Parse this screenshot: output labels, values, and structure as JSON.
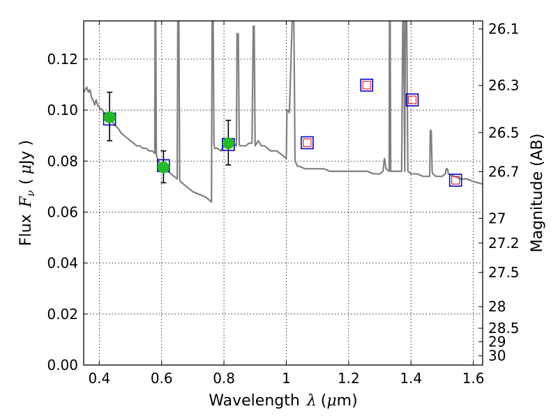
{
  "chart_data": {
    "type": "line",
    "xlabel_text": "Wavelength",
    "xlabel_symbol": "λ",
    "xlabel_unit_open": "(",
    "xlabel_unit_mu": "μ",
    "xlabel_unit_rest": "m)",
    "ylabel_text": "Flux",
    "ylabel_symbol": "F",
    "ylabel_sub": "ν",
    "ylabel_unit_open": "(",
    "ylabel_unit_mu": "μ",
    "ylabel_unit_rest": "Jy )",
    "y2label": "Magnitude (AB)",
    "xlim": [
      0.35,
      1.63
    ],
    "ylim": [
      0.0,
      0.135
    ],
    "grid": true,
    "x_ticks": [
      {
        "v": 0.4,
        "label": "0.4"
      },
      {
        "v": 0.6,
        "label": "0.6"
      },
      {
        "v": 0.8,
        "label": "0.8"
      },
      {
        "v": 1.0,
        "label": "1"
      },
      {
        "v": 1.2,
        "label": "1.2"
      },
      {
        "v": 1.4,
        "label": "1.4"
      },
      {
        "v": 1.6,
        "label": "1.6"
      }
    ],
    "y_ticks": [
      {
        "v": 0.0,
        "label": "0.00"
      },
      {
        "v": 0.02,
        "label": "0.02"
      },
      {
        "v": 0.04,
        "label": "0.04"
      },
      {
        "v": 0.06,
        "label": "0.06"
      },
      {
        "v": 0.08,
        "label": "0.08"
      },
      {
        "v": 0.1,
        "label": "0.10"
      },
      {
        "v": 0.12,
        "label": "0.12"
      }
    ],
    "y2_ticks": [
      {
        "mag": 26.1,
        "label": "26.1"
      },
      {
        "mag": 26.3,
        "label": "26.3"
      },
      {
        "mag": 26.5,
        "label": "26.5"
      },
      {
        "mag": 26.7,
        "label": "26.7"
      },
      {
        "mag": 27.0,
        "label": "27"
      },
      {
        "mag": 27.2,
        "label": "27.2"
      },
      {
        "mag": 27.5,
        "label": "27.5"
      },
      {
        "mag": 28.0,
        "label": "28"
      },
      {
        "mag": 28.5,
        "label": "28.5"
      },
      {
        "mag": 29.0,
        "label": "29"
      },
      {
        "mag": 30.0,
        "label": "30"
      }
    ],
    "sed_color": "#808080",
    "model_box_color": "#0000cc",
    "upper_box_color": "#e8202a",
    "detection_color": "#22bb22",
    "sed": {
      "x": [
        0.35,
        0.36,
        0.365,
        0.37,
        0.375,
        0.38,
        0.385,
        0.39,
        0.395,
        0.4,
        0.41,
        0.42,
        0.43,
        0.44,
        0.45,
        0.46,
        0.47,
        0.48,
        0.49,
        0.5,
        0.51,
        0.52,
        0.53,
        0.54,
        0.55,
        0.56,
        0.57,
        0.578,
        0.579,
        0.581,
        0.583,
        0.584,
        0.59,
        0.6,
        0.62,
        0.64,
        0.65,
        0.652,
        0.655,
        0.658,
        0.66,
        0.68,
        0.7,
        0.72,
        0.74,
        0.75,
        0.76,
        0.762,
        0.765,
        0.768,
        0.77,
        0.78,
        0.79,
        0.8,
        0.805,
        0.81,
        0.82,
        0.83,
        0.84,
        0.842,
        0.846,
        0.849,
        0.85,
        0.86,
        0.87,
        0.88,
        0.89,
        0.894,
        0.897,
        0.9,
        0.91,
        0.92,
        0.93,
        0.94,
        0.95,
        0.96,
        0.97,
        0.98,
        0.99,
        1.0,
        1.002,
        1.005,
        1.01,
        1.02,
        1.024,
        1.028,
        1.032,
        1.036,
        1.04,
        1.06,
        1.08,
        1.1,
        1.12,
        1.14,
        1.16,
        1.18,
        1.2,
        1.22,
        1.24,
        1.26,
        1.28,
        1.3,
        1.31,
        1.315,
        1.32,
        1.33,
        1.331,
        1.333,
        1.335,
        1.336,
        1.34,
        1.36,
        1.37,
        1.374,
        1.376,
        1.38,
        1.382,
        1.386,
        1.39,
        1.4,
        1.42,
        1.44,
        1.46,
        1.462,
        1.465,
        1.468,
        1.47,
        1.48,
        1.5,
        1.51,
        1.513,
        1.517,
        1.52,
        1.54,
        1.56,
        1.58,
        1.6,
        1.63
      ],
      "y": [
        0.107,
        0.109,
        0.107,
        0.108,
        0.105,
        0.104,
        0.102,
        0.104,
        0.102,
        0.101,
        0.1,
        0.098,
        0.097,
        0.096,
        0.094,
        0.093,
        0.091,
        0.09,
        0.089,
        0.088,
        0.087,
        0.086,
        0.086,
        0.085,
        0.085,
        0.084,
        0.084,
        0.083,
        0.14,
        0.14,
        0.083,
        0.082,
        0.08,
        0.078,
        0.076,
        0.074,
        0.073,
        0.14,
        0.14,
        0.073,
        0.072,
        0.07,
        0.068,
        0.067,
        0.066,
        0.065,
        0.064,
        0.14,
        0.14,
        0.087,
        0.085,
        0.085,
        0.084,
        0.086,
        0.088,
        0.085,
        0.086,
        0.087,
        0.086,
        0.13,
        0.13,
        0.087,
        0.086,
        0.086,
        0.086,
        0.087,
        0.087,
        0.133,
        0.133,
        0.086,
        0.088,
        0.086,
        0.086,
        0.085,
        0.084,
        0.084,
        0.084,
        0.083,
        0.082,
        0.081,
        0.1,
        0.1,
        0.099,
        0.14,
        0.14,
        0.08,
        0.079,
        0.078,
        0.078,
        0.077,
        0.077,
        0.077,
        0.077,
        0.076,
        0.076,
        0.076,
        0.076,
        0.076,
        0.076,
        0.076,
        0.075,
        0.075,
        0.076,
        0.081,
        0.077,
        0.076,
        0.14,
        0.14,
        0.076,
        0.076,
        0.076,
        0.076,
        0.076,
        0.14,
        0.14,
        0.076,
        0.14,
        0.14,
        0.076,
        0.075,
        0.075,
        0.074,
        0.074,
        0.092,
        0.092,
        0.076,
        0.075,
        0.074,
        0.074,
        0.075,
        0.077,
        0.077,
        0.075,
        0.074,
        0.073,
        0.073,
        0.072,
        0.071
      ]
    },
    "model_points": [
      {
        "x": 0.433,
        "y": 0.0965,
        "filled": true
      },
      {
        "x": 0.606,
        "y": 0.0782,
        "filled": true
      },
      {
        "x": 0.814,
        "y": 0.0865,
        "filled": true
      },
      {
        "x": 1.067,
        "y": 0.0872,
        "filled": false
      },
      {
        "x": 1.258,
        "y": 0.1098,
        "filled": false
      },
      {
        "x": 1.404,
        "y": 0.104,
        "filled": false
      },
      {
        "x": 1.543,
        "y": 0.0725,
        "filled": false
      }
    ],
    "detections": [
      {
        "x": 0.433,
        "y": 0.0972,
        "yerr_low": 0.088,
        "yerr_high": 0.107
      },
      {
        "x": 0.606,
        "y": 0.0775,
        "yerr_low": 0.0715,
        "yerr_high": 0.084
      },
      {
        "x": 0.814,
        "y": 0.087,
        "yerr_low": 0.0785,
        "yerr_high": 0.096
      }
    ]
  }
}
